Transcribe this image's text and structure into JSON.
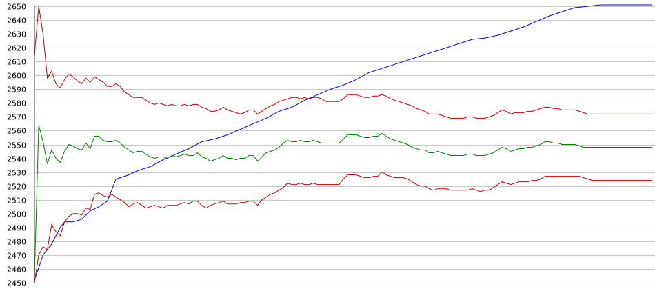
{
  "chart_data": {
    "type": "line",
    "title": "",
    "xlabel": "",
    "ylabel": "",
    "ylim": [
      2450,
      2650
    ],
    "xlim": [
      0,
      144
    ],
    "yticks": [
      2450,
      2460,
      2470,
      2480,
      2490,
      2500,
      2510,
      2520,
      2530,
      2540,
      2550,
      2560,
      2570,
      2580,
      2590,
      2600,
      2610,
      2620,
      2630,
      2640,
      2650
    ],
    "grid": true,
    "legend": "none",
    "series": [
      {
        "color": "#0000c0",
        "x": [
          0,
          2,
          4,
          6,
          7,
          9,
          11,
          13,
          15,
          17,
          19,
          22,
          24,
          27,
          30,
          33,
          36,
          39,
          42,
          45,
          48,
          51,
          54,
          57,
          60,
          63,
          66,
          69,
          72,
          75,
          78,
          81,
          84,
          87,
          90,
          93,
          96,
          99,
          102,
          105,
          108,
          111,
          114,
          117,
          120,
          123,
          126,
          129,
          132,
          135,
          138,
          141,
          144
        ],
        "values": [
          2452,
          2470,
          2478,
          2490,
          2494,
          2494,
          2496,
          2502,
          2505,
          2509,
          2525,
          2528,
          2531,
          2534,
          2539,
          2543,
          2547,
          2552,
          2554,
          2557,
          2561,
          2565,
          2569,
          2574,
          2577,
          2582,
          2586,
          2590,
          2593,
          2597,
          2602,
          2605,
          2608,
          2611,
          2614,
          2617,
          2620,
          2623,
          2626,
          2627,
          2629,
          2632,
          2635,
          2639,
          2643,
          2646,
          2649,
          2650,
          2651,
          2651,
          2651,
          2651,
          2651
        ]
      },
      {
        "color": "#c00000",
        "x": [
          0,
          1,
          2,
          3,
          4,
          5,
          6,
          7,
          8,
          9,
          10,
          11,
          12,
          13,
          14,
          15,
          16,
          17,
          18,
          19,
          20,
          21,
          22,
          23,
          24,
          25,
          26,
          27,
          28,
          29,
          30,
          31,
          32,
          33,
          34,
          35,
          36,
          37,
          38,
          39,
          40,
          41,
          42,
          43,
          44,
          45,
          46,
          47,
          48,
          49,
          50,
          51,
          52,
          53,
          54,
          55,
          56,
          57,
          58,
          59,
          60,
          61,
          62,
          63,
          64,
          65,
          66,
          67,
          68,
          69,
          70,
          71,
          72,
          73,
          74,
          75,
          76,
          77,
          78,
          79,
          80,
          81,
          82,
          83,
          84,
          85,
          86,
          87,
          88,
          89,
          90,
          91,
          92,
          93,
          94,
          95,
          96,
          97,
          98,
          99,
          100,
          101,
          102,
          103,
          104,
          105,
          106,
          107,
          108,
          109,
          110,
          111,
          112,
          113,
          114,
          115,
          116,
          117,
          118,
          119,
          120,
          121,
          122,
          123,
          124,
          125,
          126,
          127,
          128,
          129,
          130,
          131,
          132,
          133,
          134,
          135,
          136,
          137,
          138,
          139,
          140,
          141,
          142,
          143,
          144
        ],
        "values": [
          2615,
          2650,
          2630,
          2598,
          2603,
          2594,
          2591,
          2597,
          2601,
          2599,
          2596,
          2594,
          2598,
          2595,
          2599,
          2597,
          2595,
          2592,
          2592,
          2594,
          2592,
          2588,
          2586,
          2584,
          2584,
          2584,
          2582,
          2580,
          2579,
          2580,
          2579,
          2578,
          2579,
          2578,
          2578,
          2579,
          2578,
          2579,
          2579,
          2577,
          2576,
          2574,
          2574,
          2575,
          2577,
          2575,
          2574,
          2573,
          2572,
          2573,
          2575,
          2575,
          2572,
          2574,
          2576,
          2578,
          2579,
          2581,
          2582,
          2583,
          2584,
          2584,
          2583,
          2584,
          2583,
          2584,
          2584,
          2583,
          2581,
          2581,
          2581,
          2581,
          2583,
          2586,
          2586,
          2586,
          2585,
          2584,
          2584,
          2585,
          2585,
          2586,
          2585,
          2583,
          2582,
          2581,
          2580,
          2579,
          2578,
          2576,
          2575,
          2574,
          2572,
          2572,
          2572,
          2571,
          2570,
          2569,
          2569,
          2569,
          2569,
          2570,
          2570,
          2569,
          2569,
          2569,
          2570,
          2571,
          2573,
          2575,
          2574,
          2572,
          2573,
          2573,
          2573,
          2574,
          2574,
          2575,
          2576,
          2577,
          2577,
          2576,
          2576,
          2575,
          2575,
          2575,
          2575,
          2574,
          2573,
          2572,
          2572,
          2572,
          2572,
          2572,
          2572,
          2572,
          2572,
          2572,
          2572,
          2572,
          2572,
          2572,
          2572,
          2572,
          2572
        ]
      },
      {
        "color": "#008000",
        "x": [
          0,
          1,
          2,
          3,
          4,
          5,
          6,
          7,
          8,
          9,
          10,
          11,
          12,
          13,
          14,
          15,
          16,
          17,
          18,
          19,
          20,
          21,
          22,
          23,
          24,
          25,
          26,
          27,
          28,
          29,
          30,
          31,
          32,
          33,
          34,
          35,
          36,
          37,
          38,
          39,
          40,
          41,
          42,
          43,
          44,
          45,
          46,
          47,
          48,
          49,
          50,
          51,
          52,
          53,
          54,
          55,
          56,
          57,
          58,
          59,
          60,
          61,
          62,
          63,
          64,
          65,
          66,
          67,
          68,
          69,
          70,
          71,
          72,
          73,
          74,
          75,
          76,
          77,
          78,
          79,
          80,
          81,
          82,
          83,
          84,
          85,
          86,
          87,
          88,
          89,
          90,
          91,
          92,
          93,
          94,
          95,
          96,
          97,
          98,
          99,
          100,
          101,
          102,
          103,
          104,
          105,
          106,
          107,
          108,
          109,
          110,
          111,
          112,
          113,
          114,
          115,
          116,
          117,
          118,
          119,
          120,
          121,
          122,
          123,
          124,
          125,
          126,
          127,
          128,
          129,
          130,
          131,
          132,
          133,
          134,
          135,
          136,
          137,
          138,
          139,
          140,
          141,
          142,
          143,
          144
        ],
        "values": [
          2455,
          2564,
          2552,
          2536,
          2546,
          2540,
          2537,
          2545,
          2550,
          2549,
          2547,
          2546,
          2551,
          2547,
          2556,
          2556,
          2553,
          2552,
          2552,
          2553,
          2551,
          2548,
          2546,
          2544,
          2545,
          2545,
          2543,
          2541,
          2540,
          2541,
          2541,
          2540,
          2542,
          2541,
          2542,
          2543,
          2542,
          2542,
          2544,
          2541,
          2540,
          2538,
          2539,
          2540,
          2542,
          2540,
          2540,
          2539,
          2540,
          2540,
          2542,
          2542,
          2538,
          2541,
          2544,
          2545,
          2546,
          2548,
          2551,
          2553,
          2552,
          2552,
          2553,
          2552,
          2552,
          2553,
          2552,
          2551,
          2551,
          2551,
          2551,
          2551,
          2554,
          2557,
          2557,
          2557,
          2556,
          2555,
          2555,
          2556,
          2556,
          2558,
          2556,
          2554,
          2553,
          2552,
          2551,
          2550,
          2548,
          2547,
          2546,
          2546,
          2544,
          2544,
          2545,
          2544,
          2543,
          2542,
          2542,
          2542,
          2542,
          2543,
          2543,
          2542,
          2542,
          2542,
          2543,
          2544,
          2546,
          2548,
          2547,
          2545,
          2546,
          2547,
          2547,
          2548,
          2548,
          2549,
          2550,
          2552,
          2552,
          2551,
          2551,
          2550,
          2550,
          2550,
          2550,
          2549,
          2548,
          2548,
          2548,
          2548,
          2548,
          2548,
          2548,
          2548,
          2548,
          2548,
          2548,
          2548,
          2548,
          2548,
          2548,
          2548,
          2548
        ]
      },
      {
        "color": "#c00000",
        "x": [
          0,
          1,
          2,
          3,
          4,
          5,
          6,
          7,
          8,
          9,
          10,
          11,
          12,
          13,
          14,
          15,
          16,
          17,
          18,
          19,
          20,
          21,
          22,
          23,
          24,
          25,
          26,
          27,
          28,
          29,
          30,
          31,
          32,
          33,
          34,
          35,
          36,
          37,
          38,
          39,
          40,
          41,
          42,
          43,
          44,
          45,
          46,
          47,
          48,
          49,
          50,
          51,
          52,
          53,
          54,
          55,
          56,
          57,
          58,
          59,
          60,
          61,
          62,
          63,
          64,
          65,
          66,
          67,
          68,
          69,
          70,
          71,
          72,
          73,
          74,
          75,
          76,
          77,
          78,
          79,
          80,
          81,
          82,
          83,
          84,
          85,
          86,
          87,
          88,
          89,
          90,
          91,
          92,
          93,
          94,
          95,
          96,
          97,
          98,
          99,
          100,
          101,
          102,
          103,
          104,
          105,
          106,
          107,
          108,
          109,
          110,
          111,
          112,
          113,
          114,
          115,
          116,
          117,
          118,
          119,
          120,
          121,
          122,
          123,
          124,
          125,
          126,
          127,
          128,
          129,
          130,
          131,
          132,
          133,
          134,
          135,
          136,
          137,
          138,
          139,
          140,
          141,
          142,
          143,
          144
        ],
        "values": [
          2450,
          2470,
          2476,
          2474,
          2492,
          2487,
          2484,
          2494,
          2498,
          2500,
          2500,
          2499,
          2504,
          2503,
          2514,
          2515,
          2513,
          2512,
          2514,
          2512,
          2510,
          2508,
          2505,
          2507,
          2508,
          2506,
          2504,
          2505,
          2506,
          2505,
          2504,
          2506,
          2506,
          2506,
          2507,
          2508,
          2507,
          2509,
          2509,
          2506,
          2504,
          2506,
          2507,
          2508,
          2509,
          2507,
          2507,
          2507,
          2508,
          2508,
          2509,
          2509,
          2506,
          2510,
          2512,
          2514,
          2515,
          2517,
          2519,
          2522,
          2521,
          2521,
          2522,
          2521,
          2521,
          2522,
          2521,
          2521,
          2521,
          2521,
          2521,
          2521,
          2525,
          2528,
          2528,
          2528,
          2527,
          2526,
          2526,
          2527,
          2527,
          2530,
          2528,
          2527,
          2526,
          2526,
          2526,
          2525,
          2523,
          2521,
          2520,
          2520,
          2518,
          2517,
          2518,
          2518,
          2518,
          2517,
          2517,
          2517,
          2517,
          2517,
          2518,
          2517,
          2516,
          2517,
          2517,
          2519,
          2521,
          2523,
          2522,
          2521,
          2522,
          2523,
          2523,
          2523,
          2524,
          2524,
          2525,
          2527,
          2527,
          2527,
          2527,
          2527,
          2527,
          2527,
          2527,
          2527,
          2526,
          2525,
          2524,
          2524,
          2524,
          2524,
          2524,
          2524,
          2524,
          2524,
          2524,
          2524,
          2524,
          2524,
          2524,
          2524,
          2524
        ]
      }
    ]
  }
}
